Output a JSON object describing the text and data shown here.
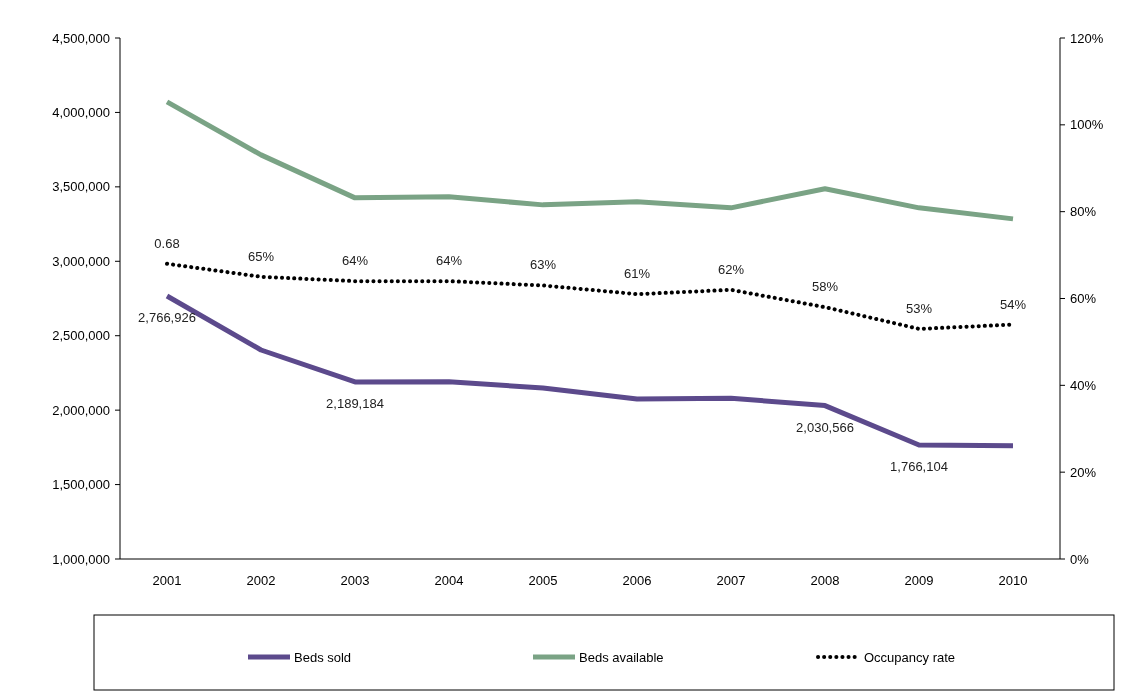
{
  "chart_data": {
    "type": "line",
    "categories": [
      "2001",
      "2002",
      "2003",
      "2004",
      "2005",
      "2006",
      "2007",
      "2008",
      "2009",
      "2010"
    ],
    "series": [
      {
        "name": "Beds sold",
        "color": "#5c4a8c",
        "line_style": "solid",
        "values": [
          2766926,
          2404000,
          2189184,
          2190000,
          2149000,
          2075000,
          2080000,
          2030566,
          1766104,
          1760000
        ],
        "value_labels": [
          "2,766,926",
          null,
          "2,189,184",
          null,
          null,
          null,
          null,
          "2,030,566",
          "1,766,104",
          null
        ]
      },
      {
        "name": "Beds available",
        "color": "#7aa385",
        "line_style": "solid",
        "values": [
          4071000,
          3715000,
          3426000,
          3433000,
          3379000,
          3400000,
          3359000,
          3487000,
          3359000,
          3285000
        ]
      },
      {
        "name": "Occupancy rate",
        "color": "#000000",
        "line_style": "dotted",
        "axis": "y2",
        "values": [
          68,
          65,
          64,
          64,
          63,
          61,
          62,
          58,
          53,
          54
        ],
        "value_labels": [
          null,
          "65%",
          "64%",
          "64%",
          "63%",
          "61%",
          "62%",
          "58%",
          "53%",
          "54%"
        ]
      }
    ],
    "ylim": [
      1000000,
      4500000
    ],
    "yticks": [
      {
        "value": 1000000,
        "label": "1,000,000"
      },
      {
        "value": 1500000,
        "label": "1,500,000"
      },
      {
        "value": 2000000,
        "label": "2,000,000"
      },
      {
        "value": 2500000,
        "label": "2,500,000"
      },
      {
        "value": 3000000,
        "label": "3,000,000"
      },
      {
        "value": 3500000,
        "label": "3,500,000"
      },
      {
        "value": 4000000,
        "label": "4,000,000"
      },
      {
        "value": 4500000,
        "label": "4,500,000"
      }
    ],
    "y2lim": [
      0,
      120
    ],
    "y2ticks": [
      {
        "value": 0,
        "label": "0%"
      },
      {
        "value": 20,
        "label": "20%"
      },
      {
        "value": 40,
        "label": "40%"
      },
      {
        "value": 60,
        "label": "60%"
      },
      {
        "value": 80,
        "label": "80%"
      },
      {
        "value": 100,
        "label": "100%"
      },
      {
        "value": 120,
        "label": "120%"
      }
    ],
    "annotations": [
      "0.68"
    ],
    "grid": false,
    "legend": "bottom",
    "marker": "none"
  }
}
